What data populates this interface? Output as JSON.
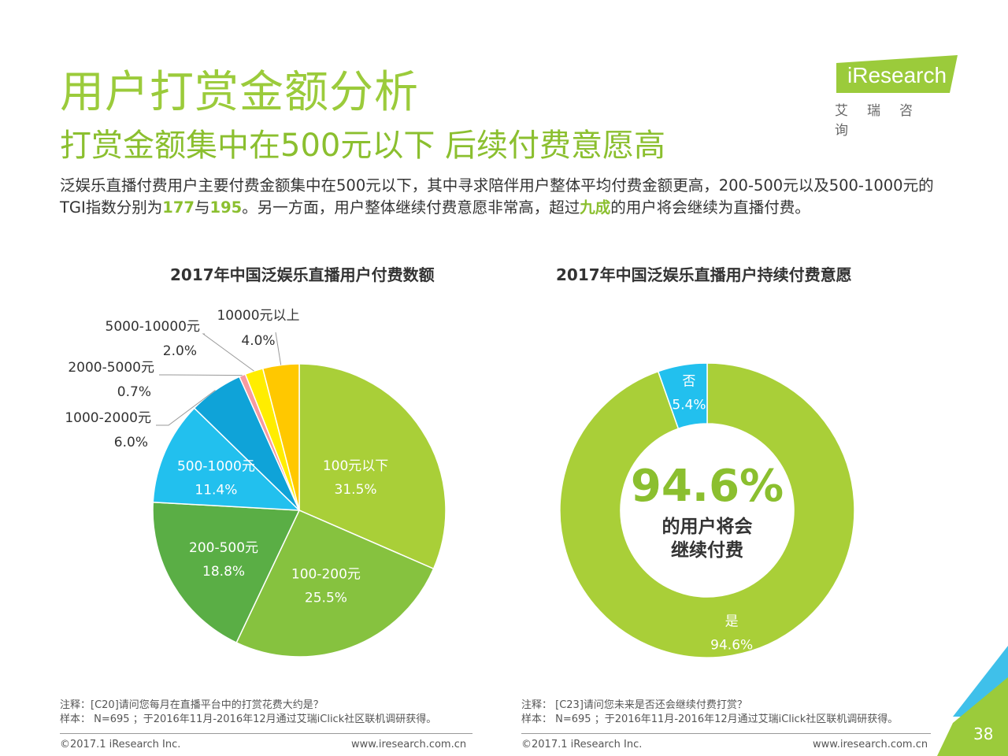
{
  "header": {
    "title": "用户打赏金额分析",
    "subtitle": "打赏金额集中在500元以下 后续付费意愿高",
    "summary_parts": [
      "泛娱乐直播付费用户主要付费金额集中在500元以下，其中寻求陪伴用户整体平均付费金额更高，200-500元以及500-1000元的TGI指数分别为",
      "177",
      "与",
      "195",
      "。另一方面，用户整体继续付费意愿非常高，超过",
      "九成",
      "的用户将会继续为直播付费。"
    ]
  },
  "logo": {
    "brand": "iResearch",
    "cn": "艾瑞咨询"
  },
  "chart_data": [
    {
      "type": "pie",
      "title": "2017年中国泛娱乐直播用户付费数额",
      "unit": "%",
      "slices": [
        {
          "label": "100元以下",
          "value": 31.5,
          "display": "31.5%",
          "color": "#a9cf38"
        },
        {
          "label": "100-200元",
          "value": 25.5,
          "display": "25.5%",
          "color": "#86c23f"
        },
        {
          "label": "200-500元",
          "value": 18.8,
          "display": "18.8%",
          "color": "#5aae45"
        },
        {
          "label": "500-1000元",
          "value": 11.4,
          "display": "11.4%",
          "color": "#22c0ee"
        },
        {
          "label": "1000-2000元",
          "value": 6.0,
          "display": "6.0%",
          "color": "#0fa3d8"
        },
        {
          "label": "2000-5000元",
          "value": 0.7,
          "display": "0.7%",
          "color": "#f79aa0"
        },
        {
          "label": "5000-10000元",
          "value": 2.0,
          "display": "2.0%",
          "color": "#ffed00"
        },
        {
          "label": "10000元以上",
          "value": 4.0,
          "display": "4.0%",
          "color": "#ffc800"
        }
      ]
    },
    {
      "type": "pie",
      "subtype": "donut",
      "title": "2017年中国泛娱乐直播用户持续付费意愿",
      "unit": "%",
      "slices": [
        {
          "label": "是",
          "value": 94.6,
          "display": "94.6%",
          "color": "#a9cf38"
        },
        {
          "label": "否",
          "value": 5.4,
          "display": "5.4%",
          "color": "#22c0ee"
        }
      ],
      "center_value": "94.6%",
      "center_text_line1": "的用户将会",
      "center_text_line2": "继续付费",
      "center_color": "#8bbf2f"
    }
  ],
  "notes": {
    "left": {
      "line1": "注释：[C20]请问您每月在直播平台中的打赏花费大约是？",
      "line2": "样本： N=695 ；于2016年11月-2016年12月通过艾瑞iClick社区联机调研获得。"
    },
    "right": {
      "line1": "注释： [C23]请问您未来是否还会继续付费打赏？",
      "line2": "样本： N=695 ；于2016年11月-2016年12月通过艾瑞iClick社区联机调研获得。"
    }
  },
  "footer": {
    "copyright": "©2017.1 iResearch Inc.",
    "website": "www.iresearch.com.cn",
    "page_number": "38"
  }
}
